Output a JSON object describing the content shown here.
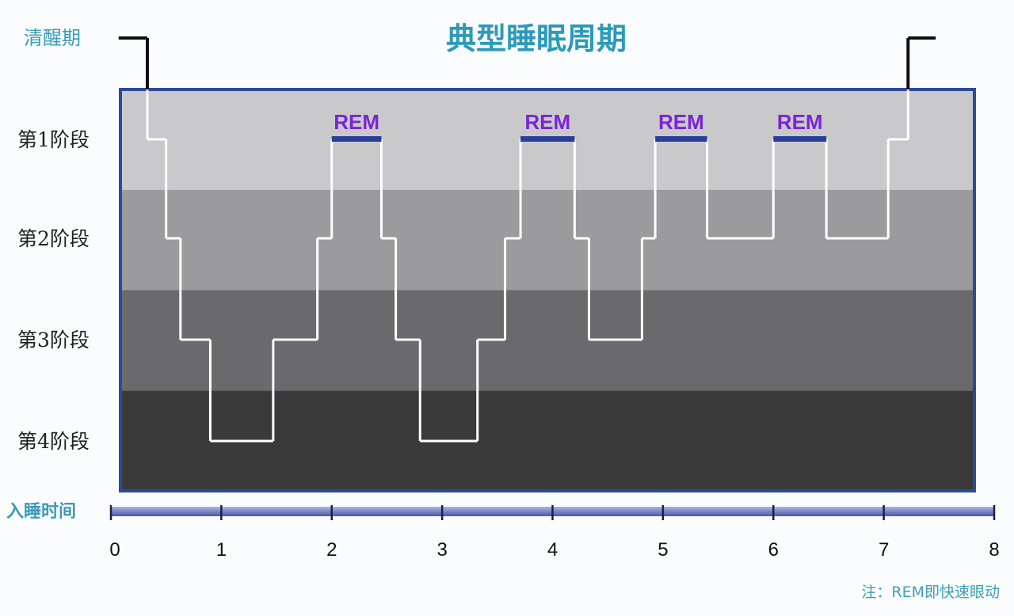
{
  "chart_data": {
    "type": "line",
    "title": "典型睡眠周期",
    "xlabel": "入睡时间",
    "xlim": [
      0,
      8
    ],
    "x_ticks": [
      "0",
      "1",
      "2",
      "3",
      "4",
      "5",
      "6",
      "7",
      "8"
    ],
    "stage_labels": [
      "清醒期",
      "第1阶段",
      "第2阶段",
      "第3阶段",
      "第4阶段"
    ],
    "steps": [
      {
        "start": 0.07,
        "end": 0.33,
        "stage": 0
      },
      {
        "start": 0.33,
        "end": 0.5,
        "stage": 1
      },
      {
        "start": 0.5,
        "end": 0.63,
        "stage": 2
      },
      {
        "start": 0.63,
        "end": 0.9,
        "stage": 3
      },
      {
        "start": 0.9,
        "end": 1.47,
        "stage": 4
      },
      {
        "start": 1.47,
        "end": 1.87,
        "stage": 3
      },
      {
        "start": 1.87,
        "end": 2.0,
        "stage": 2
      },
      {
        "start": 2.0,
        "end": 2.45,
        "stage": 1
      },
      {
        "start": 2.45,
        "end": 2.58,
        "stage": 2
      },
      {
        "start": 2.58,
        "end": 2.8,
        "stage": 3
      },
      {
        "start": 2.8,
        "end": 3.32,
        "stage": 4
      },
      {
        "start": 3.32,
        "end": 3.57,
        "stage": 3
      },
      {
        "start": 3.57,
        "end": 3.71,
        "stage": 2
      },
      {
        "start": 3.71,
        "end": 4.2,
        "stage": 1
      },
      {
        "start": 4.2,
        "end": 4.33,
        "stage": 2
      },
      {
        "start": 4.33,
        "end": 4.81,
        "stage": 3
      },
      {
        "start": 4.81,
        "end": 4.93,
        "stage": 2
      },
      {
        "start": 4.93,
        "end": 5.4,
        "stage": 1
      },
      {
        "start": 5.4,
        "end": 6.0,
        "stage": 2
      },
      {
        "start": 6.0,
        "end": 6.48,
        "stage": 1
      },
      {
        "start": 6.48,
        "end": 7.04,
        "stage": 2
      },
      {
        "start": 7.04,
        "end": 7.22,
        "stage": 1
      },
      {
        "start": 7.22,
        "end": 7.47,
        "stage": 0
      }
    ],
    "rem_periods": [
      {
        "label": "REM",
        "start": 2.0,
        "end": 2.45
      },
      {
        "label": "REM",
        "start": 3.71,
        "end": 4.2
      },
      {
        "label": "REM",
        "start": 4.93,
        "end": 5.4
      },
      {
        "label": "REM",
        "start": 6.0,
        "end": 6.48
      }
    ],
    "note": "注：REM即快速眼动",
    "colors": {
      "title": "#2b9bb9",
      "band_stage1": "#c9c9cb",
      "band_stage2": "#9b9b9d",
      "band_stage3": "#6a6a6c",
      "band_stage4": "#3a3a3b",
      "frame": "#2a4a9c",
      "line": "#ffffff",
      "wake_line": "#111111",
      "rem_text": "#7b24d6",
      "rem_bar": "#2a3f9a",
      "axis": "#5a68b6"
    }
  }
}
